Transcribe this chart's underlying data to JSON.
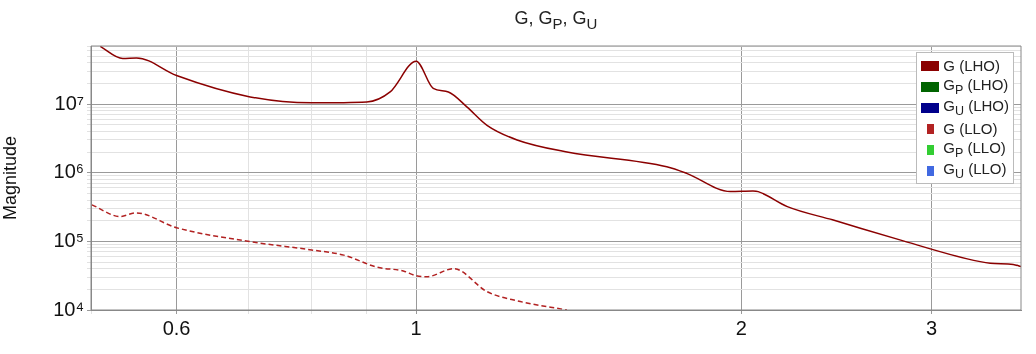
{
  "chart_data": {
    "type": "line",
    "title": "G, G$_{P}$, G$_{U}$",
    "ylabel": "Magnitude",
    "log": "xy",
    "grid": true,
    "legend": "top right",
    "xlim": [
      0.5,
      3.63
    ],
    "ylim": [
      10000,
      70000000
    ],
    "xticks": [
      {
        "value": 0.5,
        "label": null
      },
      0.6,
      {
        "value": 0.7,
        "label": null
      },
      {
        "value": 0.8,
        "label": null
      },
      {
        "value": 0.9,
        "label": null
      },
      1,
      2,
      3
    ],
    "yticks": [
      {
        "value": 10000,
        "label": "10⁴"
      },
      {
        "value": 20000,
        "label": null
      },
      {
        "value": 30000,
        "label": null
      },
      {
        "value": 40000,
        "label": null
      },
      {
        "value": 50000,
        "label": null
      },
      {
        "value": 60000,
        "label": null
      },
      {
        "value": 70000,
        "label": null
      },
      {
        "value": 80000,
        "label": null
      },
      {
        "value": 90000,
        "label": null
      },
      {
        "value": 100000,
        "label": "10⁵"
      },
      {
        "value": 200000,
        "label": null
      },
      {
        "value": 300000,
        "label": null
      },
      {
        "value": 400000,
        "label": null
      },
      {
        "value": 500000,
        "label": null
      },
      {
        "value": 600000,
        "label": null
      },
      {
        "value": 700000,
        "label": null
      },
      {
        "value": 800000,
        "label": null
      },
      {
        "value": 900000,
        "label": null
      },
      {
        "value": 1000000,
        "label": "10⁶"
      },
      {
        "value": 2000000,
        "label": null
      },
      {
        "value": 3000000,
        "label": null
      },
      {
        "value": 4000000,
        "label": null
      },
      {
        "value": 5000000,
        "label": null
      },
      {
        "value": 6000000,
        "label": null
      },
      {
        "value": 7000000,
        "label": null
      },
      {
        "value": 8000000,
        "label": null
      },
      {
        "value": 9000000,
        "label": null
      },
      {
        "value": 10000000,
        "label": "10⁷"
      },
      {
        "value": 20000000,
        "label": null
      },
      {
        "value": 30000000,
        "label": null
      },
      {
        "value": 40000000,
        "label": null
      },
      {
        "value": 50000000,
        "label": null
      },
      {
        "value": 60000000,
        "label": null
      },
      {
        "value": 70000000,
        "label": null
      }
    ],
    "series": [
      {
        "name": "G (LHO)",
        "color": "#8b0000",
        "line_style": "solid",
        "x": [
          0.51,
          0.535,
          0.551,
          0.6,
          0.702,
          0.8,
          0.9,
          0.946,
          1,
          1.037,
          1.071,
          1.114,
          1.163,
          1.24,
          1.379,
          1.706,
          1.782,
          1.954,
          2.05,
          2.073,
          2.206,
          2.433,
          2.804,
          3.23,
          3.4,
          3.57,
          3.63
        ],
        "values": [
          69000000,
          46000000,
          47000000,
          26000000,
          12700000,
          10400000,
          10700000,
          15000000,
          42000000,
          16900000,
          15000000,
          9100000,
          4900000,
          3000000,
          2000000,
          1220000,
          970000,
          530000,
          540000,
          530000,
          320000,
          204000,
          105000,
          56000,
          48000,
          46000,
          43000
        ]
      },
      {
        "name": "G$_{P}$ (LHO)",
        "color": "#006400",
        "line_style": "solid"
      },
      {
        "name": "G$_{U}$ (LHO)",
        "color": "#00008b",
        "line_style": "solid"
      },
      {
        "name": "G (LLO)",
        "color": "#b22222",
        "line_style": "dashed",
        "x": [
          0.501,
          0.532,
          0.55,
          0.6,
          0.702,
          0.8,
          0.857,
          0.92,
          0.973,
          1,
          1.023,
          1.083,
          1.163,
          1.24,
          1.379
        ],
        "values": [
          340000,
          230000,
          260000,
          158000,
          99000,
          75000,
          63000,
          42000,
          37000,
          31500,
          30500,
          40000,
          18500,
          13600,
          10000
        ]
      },
      {
        "name": "G$_{P}$ (LLO)",
        "color": "#32cd32",
        "line_style": "dashed"
      },
      {
        "name": "G$_{U}$ (LLO)",
        "color": "#4169e1",
        "line_style": "dashed"
      }
    ]
  }
}
